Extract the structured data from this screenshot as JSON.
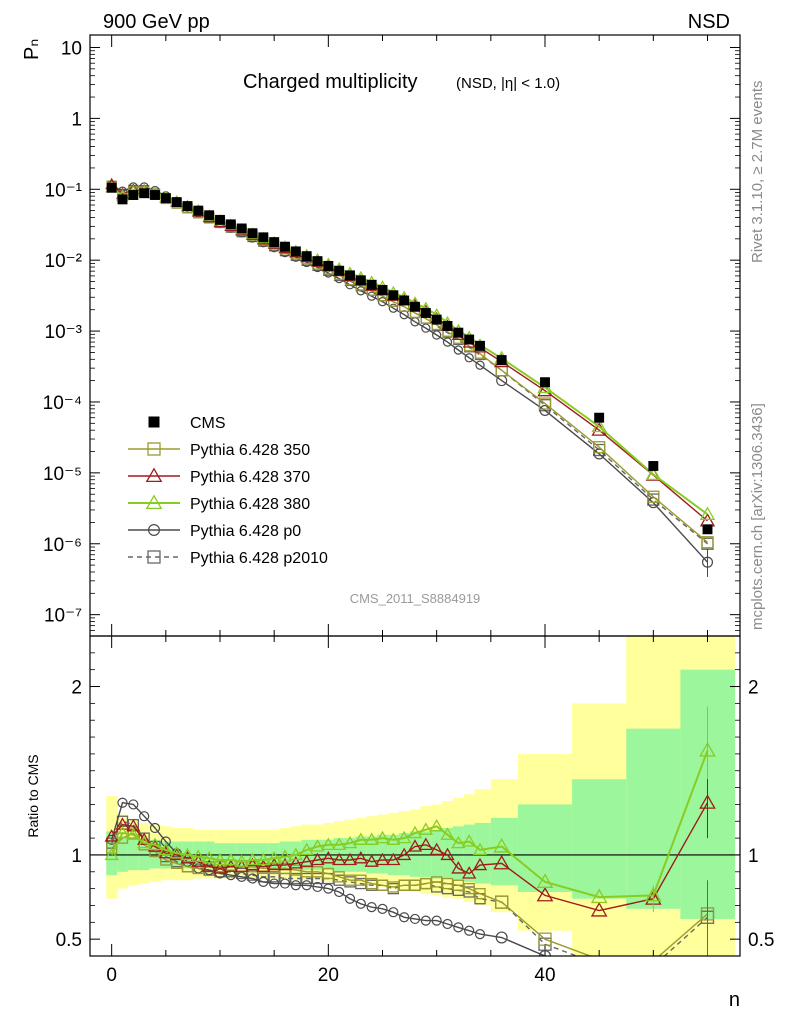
{
  "header": {
    "left": "900 GeV pp",
    "right": "NSD"
  },
  "title": {
    "main": "Charged multiplicity",
    "sub": "(NSD, |η| < 1.0)"
  },
  "watermark": "CMS_2011_S8884919",
  "side_labels": {
    "upper": "Rivet 3.1.10, ≥ 2.7M events",
    "lower": "mcplots.cern.ch [arXiv:1306.3436]"
  },
  "chart_data": {
    "type": "scatter",
    "xlabel": "n",
    "ylabel": "Pₙ",
    "ratio_ylabel": "Ratio to CMS",
    "xlim": [
      -2,
      58
    ],
    "ylim": [
      5e-08,
      15
    ],
    "ratio_ylim": [
      0.4,
      2.3
    ],
    "log_y": true,
    "x_ticks": [
      0,
      20,
      40
    ],
    "y_ticks": [
      "10⁻⁷",
      "10⁻⁶",
      "10⁻⁵",
      "10⁻⁴",
      "10⁻³",
      "10⁻²",
      "10⁻¹",
      "1",
      "10"
    ],
    "ratio_ticks": [
      "0.5",
      "1",
      "2"
    ],
    "legend_position": "lower-left",
    "x": [
      0,
      1,
      2,
      3,
      4,
      5,
      6,
      7,
      8,
      9,
      10,
      11,
      12,
      13,
      14,
      15,
      16,
      17,
      18,
      19,
      20,
      21,
      22,
      23,
      24,
      25,
      26,
      27,
      28,
      29,
      30,
      31,
      32,
      33,
      34,
      36,
      40,
      45,
      50,
      55
    ],
    "series": [
      {
        "name": "CMS",
        "color": "#000000",
        "marker": "square-filled",
        "values": [
          0.105,
          0.072,
          0.083,
          0.088,
          0.083,
          0.075,
          0.066,
          0.058,
          0.05,
          0.043,
          0.037,
          0.032,
          0.028,
          0.024,
          0.021,
          0.018,
          0.0155,
          0.0133,
          0.0114,
          0.0097,
          0.0083,
          0.0071,
          0.0061,
          0.0052,
          0.0045,
          0.0038,
          0.0032,
          0.0027,
          0.0022,
          0.0018,
          0.00145,
          0.00118,
          0.00095,
          0.00076,
          0.00062,
          0.00039,
          0.00019,
          6e-05,
          1.25e-05,
          1.6e-06
        ]
      },
      {
        "name": "Pythia 6.428 350",
        "color": "#9a9a2e",
        "marker": "square-open",
        "values": [
          0.109,
          0.079,
          0.094,
          0.093,
          0.085,
          0.073,
          0.063,
          0.054,
          0.046,
          0.04,
          0.034,
          0.03,
          0.026,
          0.0222,
          0.019,
          0.0166,
          0.0142,
          0.0121,
          0.0103,
          0.0087,
          0.0074,
          0.0062,
          0.0052,
          0.0044,
          0.0037,
          0.0031,
          0.0026,
          0.0022,
          0.0018,
          0.0015,
          0.00122,
          0.00098,
          0.00078,
          0.00061,
          0.00048,
          0.00028,
          9.5e-05,
          2.3e-05,
          4.6e-06,
          1.05e-06
        ]
      },
      {
        "name": "Pythia 6.428 370",
        "color": "#a01b1b",
        "marker": "triangle-open",
        "values": [
          0.117,
          0.085,
          0.097,
          0.096,
          0.087,
          0.076,
          0.066,
          0.057,
          0.048,
          0.04,
          0.034,
          0.03,
          0.026,
          0.0225,
          0.0194,
          0.0169,
          0.0146,
          0.0127,
          0.0109,
          0.0094,
          0.0081,
          0.0069,
          0.0059,
          0.0051,
          0.0043,
          0.0037,
          0.0031,
          0.0027,
          0.0023,
          0.0019,
          0.0015,
          0.00118,
          0.00087,
          0.00068,
          0.00058,
          0.00037,
          0.000144,
          4e-05,
          9.3e-06,
          2.1e-06
        ]
      },
      {
        "name": "Pythia 6.428 380",
        "color": "#88cc22",
        "marker": "triangle-open",
        "values": [
          0.105,
          0.081,
          0.093,
          0.094,
          0.088,
          0.077,
          0.067,
          0.058,
          0.05,
          0.042,
          0.036,
          0.031,
          0.027,
          0.0234,
          0.0203,
          0.0176,
          0.0154,
          0.0134,
          0.0117,
          0.0102,
          0.0088,
          0.0076,
          0.0066,
          0.0057,
          0.0049,
          0.0042,
          0.0035,
          0.003,
          0.0025,
          0.0021,
          0.0017,
          0.00132,
          0.00102,
          0.00082,
          0.00064,
          0.00041,
          0.00016,
          4.5e-05,
          9.5e-06,
          2.6e-06
        ]
      },
      {
        "name": "Pythia 6.428 p0",
        "color": "#4a4a4a",
        "marker": "circle-open",
        "values": [
          0.114,
          0.094,
          0.108,
          0.108,
          0.096,
          0.081,
          0.067,
          0.056,
          0.046,
          0.039,
          0.033,
          0.0283,
          0.0243,
          0.0206,
          0.0176,
          0.015,
          0.0128,
          0.011,
          0.0093,
          0.0079,
          0.0066,
          0.0055,
          0.0045,
          0.0037,
          0.0031,
          0.0026,
          0.0021,
          0.0017,
          0.00135,
          0.0011,
          0.00088,
          0.0007,
          0.00054,
          0.00042,
          0.00033,
          0.0002,
          7.6e-05,
          1.85e-05,
          3.8e-06,
          5.5e-07
        ]
      },
      {
        "name": "Pythia 6.428 p2010",
        "color": "#666666",
        "marker": "square-open-dashed",
        "values": [
          0.112,
          0.086,
          0.098,
          0.097,
          0.087,
          0.074,
          0.063,
          0.054,
          0.046,
          0.039,
          0.0335,
          0.0288,
          0.0248,
          0.0212,
          0.0182,
          0.0157,
          0.0134,
          0.0115,
          0.0098,
          0.0083,
          0.0071,
          0.006,
          0.0051,
          0.0043,
          0.0037,
          0.0031,
          0.0026,
          0.0022,
          0.0018,
          0.0015,
          0.00118,
          0.00095,
          0.00075,
          0.00059,
          0.00046,
          0.00028,
          9e-05,
          2.1e-05,
          4.2e-06,
          1e-06
        ]
      }
    ],
    "ratio_band": {
      "inner_color": "#9cf79c",
      "outer_color": "#ffff9c",
      "x_edges": [
        -0.5,
        0.5,
        1.5,
        2.5,
        3.5,
        4.5,
        5.5,
        6.5,
        7.5,
        8.5,
        9.5,
        10.5,
        11.5,
        12.5,
        13.5,
        14.5,
        15.5,
        16.5,
        17.5,
        18.5,
        19.5,
        20.5,
        21.5,
        22.5,
        23.5,
        24.5,
        25.5,
        26.5,
        27.5,
        28.5,
        29.5,
        30.5,
        31.5,
        32.5,
        33.5,
        35,
        37.5,
        42.5,
        47.5,
        52.5,
        57.5
      ],
      "inner_lo": [
        0.88,
        0.9,
        0.91,
        0.91,
        0.92,
        0.92,
        0.92,
        0.92,
        0.92,
        0.92,
        0.92,
        0.92,
        0.92,
        0.92,
        0.92,
        0.92,
        0.92,
        0.91,
        0.91,
        0.91,
        0.91,
        0.9,
        0.9,
        0.9,
        0.89,
        0.89,
        0.88,
        0.88,
        0.87,
        0.87,
        0.86,
        0.86,
        0.85,
        0.84,
        0.83,
        0.82,
        0.78,
        0.74,
        0.68,
        0.62
      ],
      "inner_hi": [
        1.14,
        1.11,
        1.1,
        1.09,
        1.09,
        1.08,
        1.08,
        1.08,
        1.08,
        1.08,
        1.07,
        1.07,
        1.07,
        1.07,
        1.07,
        1.07,
        1.08,
        1.08,
        1.09,
        1.09,
        1.09,
        1.1,
        1.1,
        1.11,
        1.11,
        1.12,
        1.12,
        1.13,
        1.14,
        1.14,
        1.15,
        1.16,
        1.17,
        1.18,
        1.19,
        1.22,
        1.3,
        1.45,
        1.75,
        2.1
      ],
      "outer_lo": [
        0.74,
        0.8,
        0.82,
        0.83,
        0.84,
        0.85,
        0.85,
        0.85,
        0.86,
        0.86,
        0.86,
        0.86,
        0.86,
        0.86,
        0.86,
        0.86,
        0.86,
        0.85,
        0.85,
        0.85,
        0.84,
        0.84,
        0.83,
        0.83,
        0.82,
        0.81,
        0.8,
        0.79,
        0.78,
        0.77,
        0.76,
        0.75,
        0.74,
        0.72,
        0.7,
        0.66,
        0.55,
        0.4,
        0.4,
        0.4
      ],
      "outer_hi": [
        1.35,
        1.24,
        1.21,
        1.19,
        1.18,
        1.17,
        1.16,
        1.16,
        1.15,
        1.15,
        1.15,
        1.15,
        1.15,
        1.15,
        1.15,
        1.15,
        1.16,
        1.17,
        1.18,
        1.18,
        1.19,
        1.2,
        1.21,
        1.22,
        1.23,
        1.24,
        1.25,
        1.26,
        1.27,
        1.29,
        1.3,
        1.32,
        1.34,
        1.36,
        1.39,
        1.45,
        1.6,
        1.9,
        2.3,
        2.3
      ]
    },
    "ratio_series": [
      {
        "name": "Pythia 6.428 350",
        "values": [
          1.04,
          1.1,
          1.13,
          1.06,
          1.02,
          0.97,
          0.95,
          0.93,
          0.92,
          0.93,
          0.93,
          0.94,
          0.93,
          0.93,
          0.92,
          0.92,
          0.92,
          0.91,
          0.9,
          0.9,
          0.89,
          0.87,
          0.85,
          0.85,
          0.83,
          0.82,
          0.81,
          0.82,
          0.82,
          0.83,
          0.84,
          0.83,
          0.82,
          0.8,
          0.77,
          0.72,
          0.5,
          0.38,
          0.37,
          0.65
        ]
      },
      {
        "name": "Pythia 6.428 370",
        "values": [
          1.11,
          1.18,
          1.17,
          1.09,
          1.05,
          1.01,
          1.0,
          0.98,
          0.96,
          0.93,
          0.92,
          0.93,
          0.93,
          0.94,
          0.93,
          0.94,
          0.94,
          0.95,
          0.96,
          0.97,
          0.98,
          0.97,
          0.97,
          0.98,
          0.96,
          0.97,
          0.97,
          1.0,
          1.05,
          1.06,
          1.03,
          1.0,
          0.92,
          0.89,
          0.94,
          0.95,
          0.76,
          0.67,
          0.74,
          1.31
        ]
      },
      {
        "name": "Pythia 6.428 380",
        "values": [
          1.0,
          1.13,
          1.12,
          1.07,
          1.06,
          1.03,
          1.01,
          1.0,
          0.99,
          0.98,
          0.97,
          0.97,
          0.96,
          0.97,
          0.97,
          0.98,
          0.99,
          1.0,
          1.03,
          1.05,
          1.06,
          1.06,
          1.07,
          1.09,
          1.09,
          1.1,
          1.09,
          1.1,
          1.13,
          1.15,
          1.17,
          1.12,
          1.07,
          1.08,
          1.03,
          1.05,
          0.84,
          0.75,
          0.76,
          1.62
        ]
      },
      {
        "name": "Pythia 6.428 p0",
        "values": [
          1.09,
          1.31,
          1.3,
          1.23,
          1.16,
          1.08,
          1.01,
          0.96,
          0.92,
          0.91,
          0.89,
          0.88,
          0.87,
          0.86,
          0.84,
          0.83,
          0.83,
          0.82,
          0.82,
          0.81,
          0.8,
          0.78,
          0.74,
          0.71,
          0.69,
          0.68,
          0.66,
          0.63,
          0.62,
          0.61,
          0.61,
          0.59,
          0.57,
          0.55,
          0.53,
          0.51,
          0.4,
          0.31,
          0.3,
          0.34
        ]
      },
      {
        "name": "Pythia 6.428 p2010",
        "values": [
          1.07,
          1.2,
          1.18,
          1.1,
          1.05,
          0.99,
          0.96,
          0.93,
          0.92,
          0.91,
          0.9,
          0.9,
          0.89,
          0.88,
          0.87,
          0.87,
          0.86,
          0.86,
          0.86,
          0.86,
          0.86,
          0.85,
          0.84,
          0.83,
          0.82,
          0.82,
          0.8,
          0.82,
          0.82,
          0.83,
          0.81,
          0.8,
          0.79,
          0.78,
          0.74,
          0.72,
          0.47,
          0.35,
          0.34,
          0.63
        ]
      }
    ]
  }
}
